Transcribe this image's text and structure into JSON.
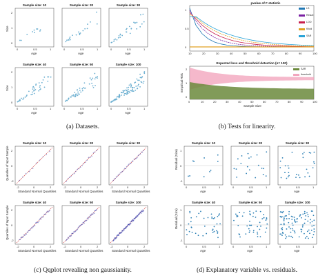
{
  "captions": {
    "a": "(a) Datasets.",
    "b": "(b) Tests for linearity.",
    "c": "(c) Qqplot revealing non gaussianity.",
    "d": "(d) Explanatory variable vs. residuals."
  },
  "datasets": {
    "titles": [
      "Sample size: 10",
      "Sample size: 20",
      "Sample size: 30",
      "Sample size: 40",
      "Sample size: 50",
      "Sample size: 100"
    ],
    "xlabel": "Age",
    "ylabel": "Size",
    "xticks": [
      "0",
      "0.5",
      "1"
    ],
    "yticks": [
      "0",
      "1",
      "2"
    ],
    "color": "#6aaed0"
  },
  "linearity": {
    "top": {
      "title": "pvalue of F statistic",
      "xticks": [
        "10",
        "20",
        "30",
        "40",
        "50",
        "60",
        "70",
        "80",
        "90",
        "100"
      ],
      "yticks": [
        "0",
        "0.5",
        "1"
      ],
      "legend": [
        "LS",
        "Resub",
        "LOO",
        "Kfold",
        "SAR"
      ]
    },
    "bottom": {
      "title": "Expected loss and threshold detection (n= 100)",
      "xlabel": "Sample Size",
      "ylabel": "Empirical Risk",
      "xticks": [
        "0",
        "10",
        "20",
        "30",
        "40",
        "50",
        "60",
        "70",
        "80",
        "90",
        "100"
      ],
      "yticks": [
        "0",
        "1",
        "2"
      ],
      "legend": [
        "SAR",
        "threshold"
      ],
      "colors": {
        "sar": "#6b8a3c",
        "threshold": "#f2a6be"
      }
    }
  },
  "qqplot": {
    "titles": [
      "Sample size: 10",
      "Sample size: 20",
      "Sample size: 30",
      "Sample size: 40",
      "Sample size: 50",
      "Sample size: 100"
    ],
    "xlabel": "Standard Normal Quantiles",
    "ylabel": "Quantiles of Input Sample",
    "xticks": [
      "-2",
      "0",
      "2"
    ],
    "yticks": [
      "-2",
      "0",
      "2"
    ],
    "color": "#2f3db0"
  },
  "residuals": {
    "titles": [
      "Sample size: 10",
      "Sample size: 20",
      "Sample size: 30",
      "Sample size: 40",
      "Sample size: 50",
      "Sample size: 100"
    ],
    "xlabel": "Age",
    "ylabel": "Residual (Size)",
    "xticks": [
      "0",
      "0.5",
      "1"
    ],
    "yticks": [
      "-1",
      "0",
      "1"
    ],
    "color": "#2b7fb5"
  }
}
